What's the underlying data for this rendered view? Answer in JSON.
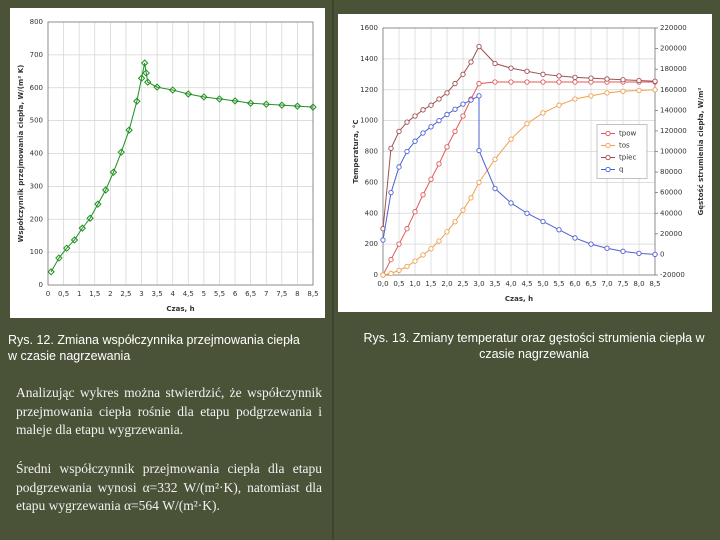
{
  "chart_data": [
    {
      "type": "line",
      "x_label": "Czas, h",
      "y_label": "Współczynnik przejmowania ciepła, W/(m² K)",
      "xlim": [
        0,
        8.5
      ],
      "ylim": [
        0,
        800
      ],
      "xticks": [
        0,
        {
          "value": 0.5,
          "label": "0,5"
        },
        1,
        {
          "value": 1.5,
          "label": "1,5"
        },
        2,
        {
          "value": 2.5,
          "label": "2,5"
        },
        3,
        {
          "value": 3.5,
          "label": "3,5"
        },
        4,
        {
          "value": 4.5,
          "label": "4,5"
        },
        5,
        {
          "value": 5.5,
          "label": "5,5"
        },
        6,
        {
          "value": 6.5,
          "label": "6,5"
        },
        7,
        {
          "value": 7.5,
          "label": "7,5"
        },
        8,
        {
          "value": 8.5,
          "label": "8,5"
        }
      ],
      "yticks": [
        0,
        100,
        200,
        300,
        400,
        500,
        600,
        700,
        800
      ],
      "grid": true,
      "marker": "diamond",
      "series": [
        {
          "color": "#1f8f1f",
          "x": [
            0.1,
            0.35,
            0.6,
            0.85,
            1.1,
            1.35,
            1.6,
            1.85,
            2.1,
            2.35,
            2.6,
            2.85,
            3.0,
            3.1,
            3.15,
            3.2,
            3.5,
            4.0,
            4.5,
            5.0,
            5.5,
            6.0,
            6.5,
            7.0,
            7.5,
            8.0,
            8.5
          ],
          "values": [
            40,
            82,
            112,
            137,
            173,
            203,
            246,
            289,
            343,
            404,
            471,
            559,
            629,
            675,
            645,
            617,
            602,
            593,
            581,
            572,
            566,
            560,
            553,
            550,
            547,
            544,
            541
          ]
        }
      ]
    },
    {
      "type": "line",
      "x_label": "Czas, h",
      "y_label": "Temperatura, °C",
      "y2_label": "Gęstość strumienia ciepła, W/m²",
      "xlim": [
        0,
        8.5
      ],
      "ylim": [
        0,
        1600
      ],
      "y2lim": [
        -20000,
        220000
      ],
      "xticks": [
        {
          "value": 0,
          "label": "0,0"
        },
        {
          "value": 0.5,
          "label": "0,5"
        },
        {
          "value": 1,
          "label": "1,0"
        },
        {
          "value": 1.5,
          "label": "1,5"
        },
        {
          "value": 2,
          "label": "2,0"
        },
        {
          "value": 2.5,
          "label": "2,5"
        },
        {
          "value": 3,
          "label": "3,0"
        },
        {
          "value": 3.5,
          "label": "3,5"
        },
        {
          "value": 4,
          "label": "4,0"
        },
        {
          "value": 4.5,
          "label": "4,5"
        },
        {
          "value": 5,
          "label": "5,0"
        },
        {
          "value": 5.5,
          "label": "5,5"
        },
        {
          "value": 6,
          "label": "6,0"
        },
        {
          "value": 6.5,
          "label": "6,5"
        },
        {
          "value": 7,
          "label": "7,0"
        },
        {
          "value": 7.5,
          "label": "7,5"
        },
        {
          "value": 8,
          "label": "8,0"
        },
        {
          "value": 8.5,
          "label": "8,5"
        }
      ],
      "yticks": [
        0,
        200,
        400,
        600,
        800,
        1000,
        1200,
        1400,
        1600
      ],
      "y2ticks": [
        -20000,
        0,
        20000,
        40000,
        60000,
        80000,
        100000,
        120000,
        140000,
        160000,
        180000,
        200000,
        220000
      ],
      "grid": true,
      "marker": "circle",
      "legend": "center-right",
      "series": [
        {
          "name": "tpow",
          "color": "#e05a5a",
          "x": [
            0,
            0.25,
            0.5,
            0.75,
            1,
            1.25,
            1.5,
            1.75,
            2,
            2.25,
            2.5,
            2.75,
            3,
            3.5,
            4,
            4.5,
            5,
            5.5,
            6,
            6.5,
            7,
            7.5,
            8,
            8.5
          ],
          "values": [
            0,
            100,
            200,
            300,
            410,
            520,
            620,
            720,
            830,
            930,
            1030,
            1140,
            1240,
            1250,
            1250,
            1250,
            1250,
            1250,
            1250,
            1250,
            1250,
            1250,
            1250,
            1250
          ]
        },
        {
          "name": "tos",
          "color": "#f0a050",
          "x": [
            0,
            0.25,
            0.5,
            0.75,
            1,
            1.25,
            1.5,
            1.75,
            2,
            2.25,
            2.5,
            2.75,
            3,
            3.5,
            4,
            4.5,
            5,
            5.5,
            6,
            6.5,
            7,
            7.5,
            8,
            8.5
          ],
          "values": [
            0,
            10,
            30,
            55,
            90,
            130,
            170,
            220,
            280,
            345,
            420,
            500,
            600,
            750,
            880,
            980,
            1050,
            1100,
            1140,
            1160,
            1180,
            1190,
            1195,
            1200
          ]
        },
        {
          "name": "tpiec",
          "color": "#a05050",
          "x": [
            0,
            0.25,
            0.5,
            0.75,
            1,
            1.25,
            1.5,
            1.75,
            2,
            2.25,
            2.5,
            2.75,
            3,
            3.5,
            4,
            4.5,
            5,
            5.5,
            6,
            6.5,
            7,
            7.5,
            8,
            8.5
          ],
          "values": [
            300,
            820,
            930,
            990,
            1030,
            1070,
            1100,
            1140,
            1180,
            1240,
            1300,
            1380,
            1480,
            1370,
            1340,
            1320,
            1300,
            1290,
            1280,
            1275,
            1270,
            1265,
            1260,
            1255
          ]
        },
        {
          "name": "q",
          "color": "#5060d0",
          "axis": "y2",
          "x": [
            0,
            0.25,
            0.5,
            0.75,
            1,
            1.25,
            1.5,
            1.75,
            2,
            2.25,
            2.5,
            2.75,
            3,
            3,
            3.5,
            4,
            4.5,
            5,
            5.5,
            6,
            6.5,
            7,
            7.5,
            8,
            8.5
          ],
          "values": [
            14000,
            60000,
            85000,
            100000,
            110000,
            118000,
            124000,
            130000,
            136000,
            141000,
            146000,
            150000,
            154000,
            101000,
            64000,
            50000,
            40000,
            32000,
            24000,
            16000,
            10000,
            6000,
            3000,
            1000,
            0
          ]
        }
      ]
    }
  ],
  "captions": [
    "Rys. 12. Zmiana współczynnika przejmowania ciepła w czasie nagrzewania",
    "Rys. 13. Zmiany temperatur oraz gęstości strumienia ciepła w czasie nagrzewania"
  ],
  "paragraphs": [
    "Analizując wykres można stwierdzić, że współczynnik przejmowania ciepła rośnie dla etapu podgrzewania i maleje dla etapu wygrzewania.",
    "Średni współczynnik przejmowania ciepła dla etapu podgrzewania wynosi α=332 W/(m²·K), natomiast dla etapu wygrzewania α=564 W/(m²·K)."
  ]
}
